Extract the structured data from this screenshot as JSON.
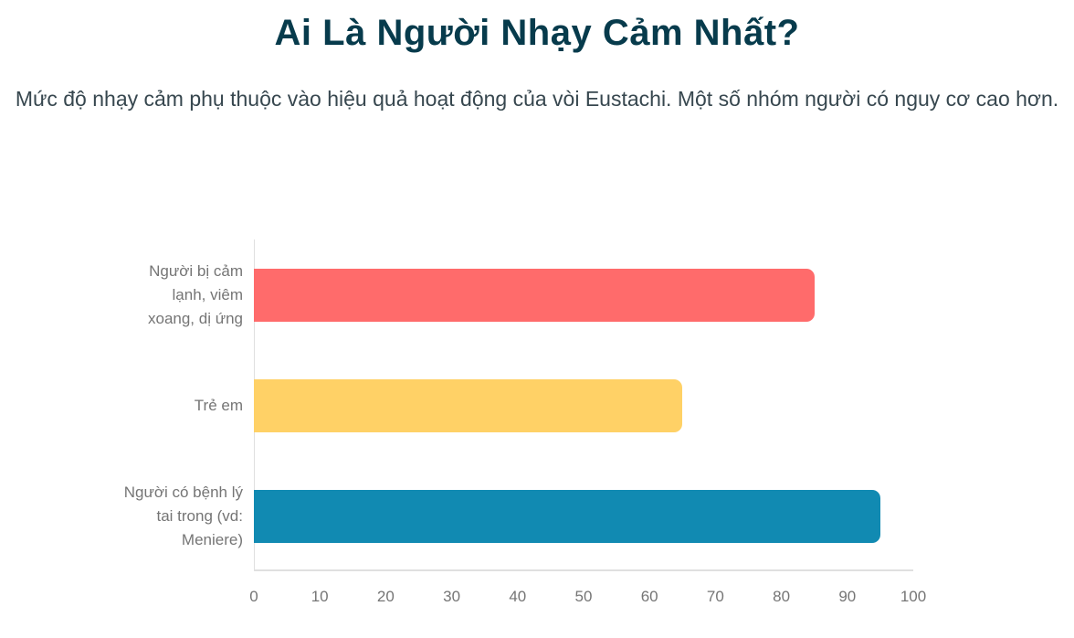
{
  "colors": {
    "title": "#073b4c",
    "subtitle": "#37474f",
    "axis_line": "#e0e0e0",
    "tick_label": "#757575",
    "category_label": "#757575",
    "page_bg": "#ffffff"
  },
  "chart_data": {
    "type": "bar",
    "orientation": "horizontal",
    "title": "Ai Là Người Nhạy Cảm Nhất?",
    "subtitle": "Mức độ nhạy cảm phụ thuộc vào hiệu quả hoạt động của vòi Eustachi. Một số nhóm người có nguy cơ cao hơn.",
    "categories": [
      "Người bị cảm lạnh, viêm xoang, dị ứng",
      "Trẻ em",
      "Người có bệnh lý tai trong (vd: Meniere)"
    ],
    "category_label_lines": [
      [
        "Người bị cảm",
        "lạnh, viêm",
        "xoang, dị ứng"
      ],
      [
        "Trẻ em"
      ],
      [
        "Người có bệnh lý",
        "tai trong (vd:",
        "Meniere)"
      ]
    ],
    "values": [
      85,
      65,
      95
    ],
    "bar_colors": [
      "#ff6b6b",
      "#ffd166",
      "#118ab2"
    ],
    "xlim": [
      0,
      100
    ],
    "x_ticks": [
      0,
      10,
      20,
      30,
      40,
      50,
      60,
      70,
      80,
      90,
      100
    ],
    "xlabel": "",
    "ylabel": "",
    "grid": "none",
    "legend": "none"
  }
}
